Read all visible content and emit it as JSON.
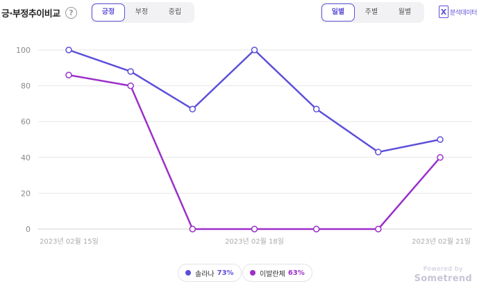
{
  "header": {
    "title": "긍·부정추이비교",
    "help_label": "?",
    "sentiment_tabs": [
      "긍정",
      "부정",
      "중립"
    ],
    "sentiment_active": 0,
    "period_tabs": [
      "일별",
      "주별",
      "월별"
    ],
    "period_active": 0,
    "export_icon_glyph": "X",
    "export_label": "분석데이터"
  },
  "chart_data": {
    "type": "line",
    "x": [
      "2023-02-15",
      "2023-02-16",
      "2023-02-17",
      "2023-02-18",
      "2023-02-19",
      "2023-02-20",
      "2023-02-21"
    ],
    "x_tick_labels": [
      "2023년 02월 15일",
      "2023년 02월 18일",
      "2023년 02월 21일"
    ],
    "x_tick_positions": [
      "2023-02-15",
      "2023-02-18",
      "2023-02-21"
    ],
    "y_ticks": [
      0,
      20,
      40,
      60,
      80,
      100
    ],
    "ylim": [
      0,
      100
    ],
    "grid": true,
    "series": [
      {
        "name": "솔라나",
        "color": "#5b4fd9",
        "values": [
          100,
          88,
          67,
          100,
          67,
          43,
          50
        ]
      },
      {
        "name": "이발란체",
        "color": "#9b2fc9",
        "values": [
          86,
          80,
          0,
          0,
          0,
          0,
          40
        ]
      }
    ]
  },
  "legend": [
    {
      "name": "솔라나",
      "percent": "73%",
      "color": "#5b4fd9"
    },
    {
      "name": "이발란체",
      "percent": "63%",
      "color": "#9b2fc9"
    }
  ],
  "branding": {
    "powered_by": "Powered by",
    "brand": "Sometrend"
  }
}
